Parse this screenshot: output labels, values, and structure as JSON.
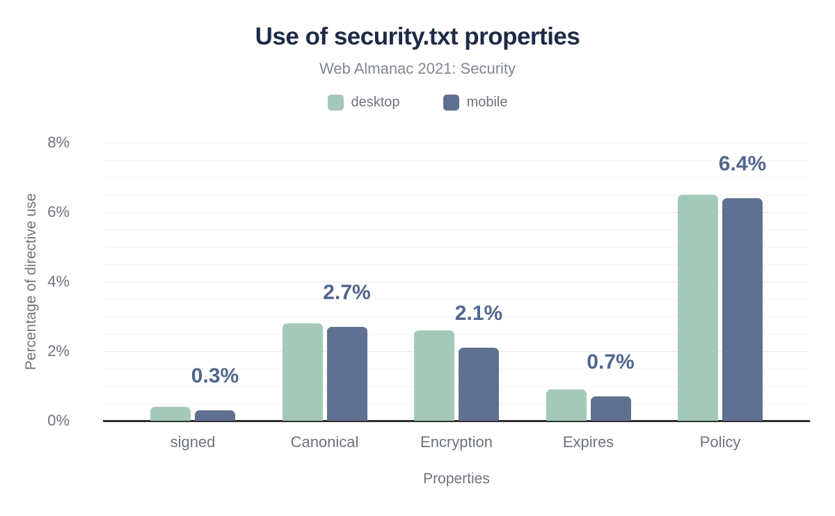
{
  "header": {
    "title": "Use of security.txt properties",
    "subtitle": "Web Almanac 2021: Security"
  },
  "colors": {
    "title_text": "#1e2a47",
    "subtitle_text": "#81868e",
    "axis_text": "#6e737b",
    "data_label_text": "#50668f",
    "desktop_bar": "#a5c9b8",
    "mobile_bar": "#5f7190",
    "axis_line": "#2e2e2e",
    "major_gridline": "#e8e8e8",
    "minor_gridline": "#f4f4f4",
    "background": "#ffffff"
  },
  "chart_data": {
    "type": "bar",
    "title": "Use of security.txt properties",
    "subtitle": "Web Almanac 2021: Security",
    "categories": [
      "signed",
      "Canonical",
      "Encryption",
      "Expires",
      "Policy"
    ],
    "series": [
      {
        "name": "desktop",
        "color": "#a5c9b8",
        "values": [
          0.4,
          2.8,
          2.6,
          0.9,
          6.5
        ]
      },
      {
        "name": "mobile",
        "color": "#5f7190",
        "values": [
          0.3,
          2.7,
          2.1,
          0.7,
          6.4
        ]
      }
    ],
    "data_labels": [
      "0.3%",
      "2.7%",
      "2.1%",
      "0.7%",
      "6.4%"
    ],
    "data_labels_series": "mobile",
    "xlabel": "Properties",
    "ylabel": "Percentage of directive use",
    "ylim": [
      0,
      8
    ],
    "ytick_values": [
      0,
      2,
      4,
      6,
      8
    ],
    "ytick_labels": [
      "0%",
      "2%",
      "4%",
      "6%",
      "8%"
    ],
    "minor_grid_step": 0.5,
    "major_grid_step": 2,
    "grid": true,
    "legend_position": "top"
  },
  "legend": {
    "items": [
      {
        "label": "desktop",
        "color": "#a5c9b8"
      },
      {
        "label": "mobile",
        "color": "#5f7190"
      }
    ]
  }
}
